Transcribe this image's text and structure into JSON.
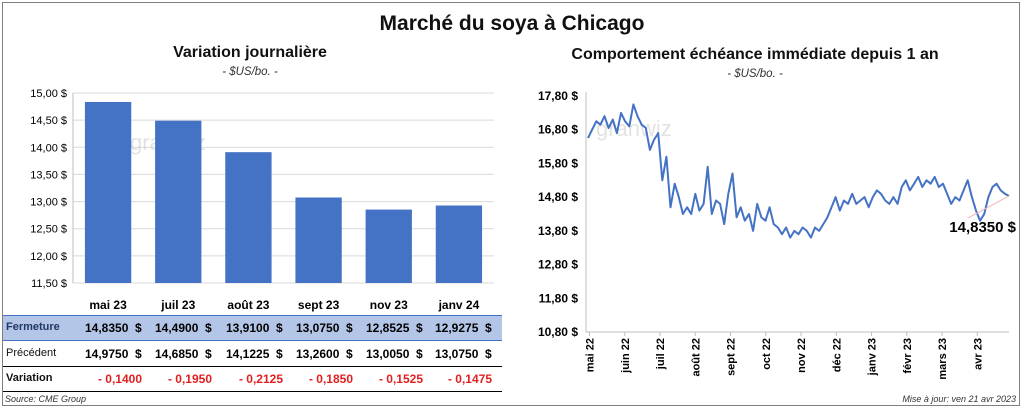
{
  "title": "Marché du soya à Chicago",
  "left": {
    "title": "Variation  journalière",
    "unit": "- $US/bo. -"
  },
  "right": {
    "title": "Comportement  échéance immédiate depuis 1 an",
    "unit": "- $US/bo. -",
    "last_label": "14,8350 $"
  },
  "table": {
    "close_label": "Fermeture",
    "prev_label": "Précédent",
    "var_label": "Variation",
    "close": [
      "14,8350  $",
      "14,4900  $",
      "13,9100  $",
      "13,0750  $",
      "12,8525  $",
      "12,9275  $"
    ],
    "prev": [
      "14,9750  $",
      "14,6850  $",
      "14,1225  $",
      "13,2600  $",
      "13,0050  $",
      "13,0750  $"
    ],
    "variation": [
      "- 0,1400",
      "- 0,1950",
      "- 0,2125",
      "- 0,1850",
      "- 0,1525",
      "- 0,1475"
    ]
  },
  "source": "Source: CME Group",
  "updated": "Mise à jour: ven 21 avr 2023",
  "watermark": "granwiz",
  "colors": {
    "bar": "#4472c4",
    "line": "#4472c4",
    "negative": "#e02020",
    "close_row": "#b4c6e7"
  },
  "chart_data": [
    {
      "type": "bar",
      "title": "Variation  journalière",
      "subtitle": "- $US/bo. -",
      "categories": [
        "mai 23",
        "juil 23",
        "août 23",
        "sept 23",
        "nov 23",
        "janv 24"
      ],
      "values": [
        14.835,
        14.49,
        13.91,
        13.075,
        12.8525,
        12.9275
      ],
      "ylim": [
        11.5,
        15.0
      ],
      "yticks": [
        "11,50 $",
        "12,00 $",
        "12,50 $",
        "13,00 $",
        "13,50 $",
        "14,00 $",
        "14,50 $",
        "15,00 $"
      ],
      "ytick_values": [
        11.5,
        12.0,
        12.5,
        13.0,
        13.5,
        14.0,
        14.5,
        15.0
      ],
      "grid": true
    },
    {
      "type": "line",
      "title": "Comportement  échéance immédiate depuis 1 an",
      "subtitle": "- $US/bo. -",
      "ylim": [
        10.8,
        17.8
      ],
      "yticks": [
        "10,80 $",
        "11,80 $",
        "12,80 $",
        "13,80 $",
        "14,80 $",
        "15,80 $",
        "16,80 $",
        "17,80 $"
      ],
      "ytick_values": [
        10.8,
        11.8,
        12.8,
        13.8,
        14.8,
        15.8,
        16.8,
        17.8
      ],
      "xticks": [
        "mai 22",
        "juin 22",
        "juil 22",
        "août 22",
        "sept 22",
        "oct 22",
        "nov 22",
        "déc 22",
        "janv 23",
        "févr 23",
        "mars 23",
        "avr 23"
      ],
      "series": [
        {
          "values": [
            16.55,
            16.8,
            17.05,
            16.95,
            17.2,
            16.85,
            17.1,
            16.7,
            17.3,
            17.05,
            16.9,
            17.55,
            17.2,
            16.95,
            16.85,
            16.2,
            16.5,
            16.7,
            15.3,
            16.0,
            14.5,
            15.2,
            14.8,
            14.3,
            14.5,
            14.3,
            14.9,
            14.4,
            14.6,
            15.7,
            14.3,
            14.7,
            14.6,
            14.0,
            14.9,
            15.5,
            14.2,
            14.5,
            14.1,
            14.3,
            13.8,
            14.6,
            14.2,
            14.1,
            14.5,
            14.0,
            13.9,
            13.7,
            13.9,
            13.6,
            13.8,
            13.7,
            13.9,
            13.8,
            13.6,
            13.9,
            13.8,
            14.0,
            14.2,
            14.5,
            14.8,
            14.4,
            14.7,
            14.6,
            14.9,
            14.6,
            14.7,
            14.8,
            14.5,
            14.8,
            15.0,
            14.9,
            14.7,
            14.6,
            14.8,
            14.6,
            15.1,
            15.3,
            15.0,
            15.2,
            15.4,
            15.1,
            15.3,
            15.2,
            15.4,
            15.1,
            15.2,
            14.9,
            14.6,
            14.8,
            14.7,
            15.0,
            15.3,
            14.8,
            14.4,
            14.1,
            14.3,
            14.8,
            15.1,
            15.2,
            15.0,
            14.9,
            14.835
          ]
        }
      ],
      "last_value": 14.835,
      "last_value_label": "14,8350 $"
    }
  ]
}
